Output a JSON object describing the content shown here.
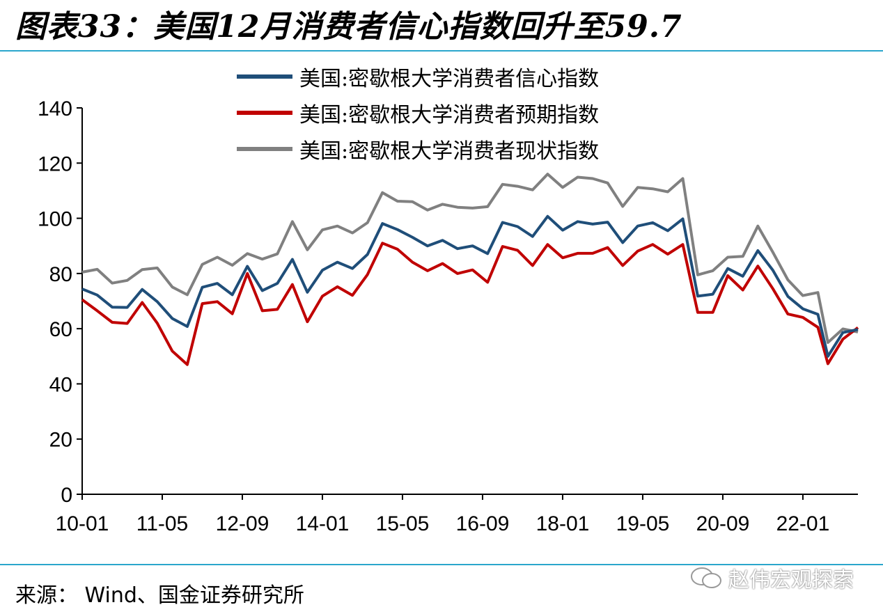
{
  "title": "图表33：美国12月消费者信心指数回升至59.7",
  "source": "来源： Wind、国金证券研究所",
  "watermark": "赵伟宏观探索",
  "chart_data": {
    "type": "line",
    "title": "图表33：美国12月消费者信心指数回升至59.7",
    "xlabel": "",
    "ylabel": "",
    "ylim": [
      0,
      140
    ],
    "yticks": [
      0,
      20,
      40,
      60,
      80,
      100,
      120,
      140
    ],
    "xticks": [
      "10-01",
      "11-05",
      "12-09",
      "14-01",
      "15-05",
      "16-09",
      "18-01",
      "19-05",
      "20-09",
      "22-01"
    ],
    "x_range": [
      "2010-01",
      "2022-12"
    ],
    "grid": false,
    "legend_position": "top",
    "x": [
      "2010-01",
      "2010-04",
      "2010-07",
      "2010-10",
      "2011-01",
      "2011-04",
      "2011-07",
      "2011-10",
      "2012-01",
      "2012-04",
      "2012-07",
      "2012-10",
      "2013-01",
      "2013-04",
      "2013-07",
      "2013-10",
      "2014-01",
      "2014-04",
      "2014-07",
      "2014-10",
      "2015-01",
      "2015-04",
      "2015-07",
      "2015-10",
      "2016-01",
      "2016-04",
      "2016-07",
      "2016-10",
      "2017-01",
      "2017-04",
      "2017-07",
      "2017-10",
      "2018-01",
      "2018-04",
      "2018-07",
      "2018-10",
      "2019-01",
      "2019-04",
      "2019-07",
      "2019-10",
      "2020-01",
      "2020-04",
      "2020-07",
      "2020-10",
      "2021-01",
      "2021-04",
      "2021-07",
      "2021-10",
      "2022-01",
      "2022-04",
      "2022-06",
      "2022-09",
      "2022-12"
    ],
    "series": [
      {
        "name": "美国:密歇根大学消费者信心指数",
        "color": "#1f4e79",
        "values": [
          74.4,
          72.2,
          67.8,
          67.7,
          74.2,
          69.8,
          63.7,
          60.8,
          75.0,
          76.4,
          72.3,
          82.6,
          73.8,
          76.4,
          85.1,
          73.2,
          81.2,
          84.1,
          81.8,
          86.9,
          98.1,
          95.9,
          93.1,
          90.0,
          92.0,
          89.0,
          90.0,
          87.2,
          98.5,
          97.0,
          93.4,
          100.7,
          95.7,
          98.8,
          97.9,
          98.6,
          91.2,
          97.2,
          98.4,
          95.5,
          99.8,
          71.8,
          72.5,
          81.8,
          79.0,
          88.3,
          81.2,
          71.7,
          67.2,
          65.2,
          50.0,
          58.6,
          59.7
        ]
      },
      {
        "name": "美国:密歇根大学消费者预期指数",
        "color": "#c00000",
        "values": [
          70.5,
          66.5,
          62.3,
          61.9,
          69.5,
          62.0,
          51.9,
          47.0,
          69.1,
          69.8,
          65.4,
          80.0,
          66.5,
          67.0,
          76.0,
          62.5,
          71.8,
          75.2,
          72.1,
          79.6,
          91.0,
          88.8,
          84.1,
          81.0,
          83.6,
          80.0,
          81.3,
          76.8,
          89.8,
          88.4,
          82.9,
          90.5,
          85.7,
          87.3,
          87.3,
          89.4,
          82.9,
          88.1,
          90.5,
          87.0,
          90.5,
          65.9,
          65.9,
          79.2,
          74.0,
          82.7,
          74.5,
          65.3,
          64.1,
          60.5,
          47.3,
          56.2,
          60.4
        ]
      },
      {
        "name": "美国:密歇根大学消费者现状指数",
        "color": "#808080",
        "values": [
          80.5,
          81.5,
          76.5,
          77.5,
          81.4,
          82.0,
          75.1,
          72.3,
          83.3,
          85.9,
          83.0,
          87.2,
          85.2,
          87.1,
          98.8,
          88.6,
          95.8,
          97.2,
          94.7,
          98.4,
          109.3,
          106.2,
          106.0,
          103.0,
          105.1,
          104.0,
          103.7,
          104.2,
          112.3,
          111.6,
          110.3,
          116.0,
          111.2,
          114.9,
          114.4,
          112.8,
          104.3,
          111.2,
          110.7,
          109.6,
          114.4,
          79.5,
          81.0,
          85.9,
          86.2,
          97.2,
          87.7,
          77.7,
          72.0,
          73.1,
          55.0,
          59.9,
          58.8
        ]
      }
    ]
  }
}
